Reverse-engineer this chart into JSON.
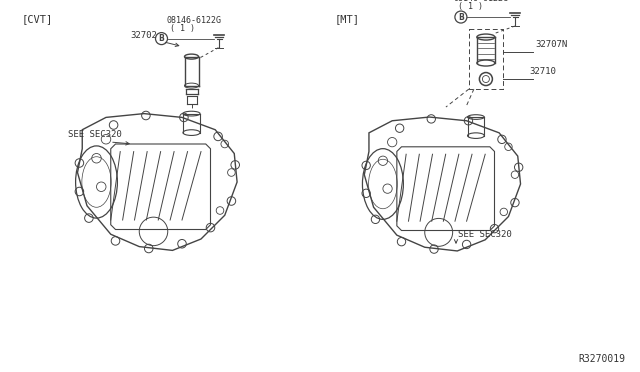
{
  "bg_color": "#ffffff",
  "fig_width": 6.4,
  "fig_height": 3.72,
  "dpi": 100,
  "title_cvt": "[CVT]",
  "title_mt": "[MT]",
  "part_number_bolt": "08146-6122G",
  "part_number_bolt_sub": "( 1 )",
  "part_number_32702": "32702",
  "part_number_32707n": "32707N",
  "part_number_32710": "32710",
  "see_sec320": "SEE SEC320",
  "watermark": "R3270019",
  "lc": "#444444",
  "tc": "#333333"
}
